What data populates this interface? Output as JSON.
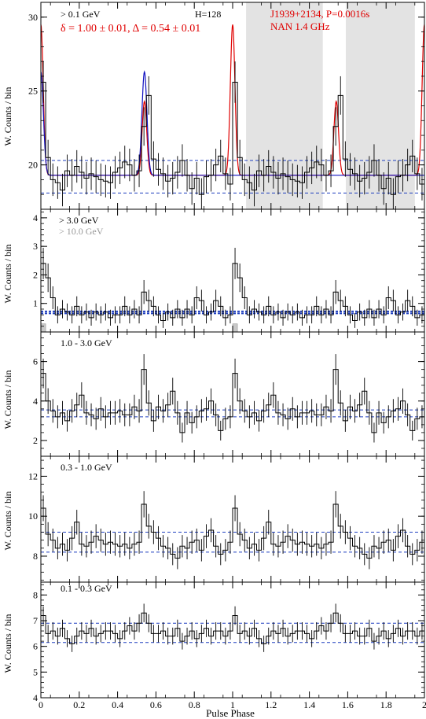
{
  "figure": {
    "xlabel": "Pulse Phase",
    "xlim": [
      0,
      2
    ],
    "x_ticks": [
      0,
      0.2,
      0.4,
      0.6,
      0.8,
      1,
      1.2,
      1.4,
      1.6,
      1.8,
      2
    ],
    "x_tick_labels": [
      "0",
      "0.2",
      "0.4",
      "0.6",
      "0.8",
      "1",
      "1.2",
      "1.4",
      "1.6",
      "1.8",
      "2"
    ],
    "colors": {
      "histogram": "#000000",
      "background_lines": "#1f3fbf",
      "fit_red": "#e00000",
      "fit_blue": "#1010c0",
      "shading": "#e3e3e3",
      "label_red": "#e00000",
      "label_grey": "#999999"
    }
  },
  "chart_data": [
    {
      "type": "line",
      "panel": "> 0.1 GeV",
      "ylabel": "W. Counts / bin",
      "ylim": [
        17,
        31
      ],
      "y_ticks": [
        20,
        25,
        30
      ],
      "labels": {
        "energy": "> 0.1 GeV",
        "h_test": "H=128",
        "pulsar": "J1939+2134, P=0.0016s",
        "radio": "NAN 1.4 GHz",
        "fit_params": "δ = 1.00 ± 0.01, Δ = 0.54 ± 0.01"
      },
      "shaded_regions": [
        [
          1.07,
          1.47
        ],
        [
          1.59,
          1.95
        ]
      ],
      "background_levels": [
        20.3,
        18.1
      ],
      "counts": [
        25.6,
        20.5,
        19.0,
        18.8,
        18.3,
        19.6,
        19.3,
        19.9,
        19.5,
        19.1,
        19.4,
        19.2,
        19.0,
        18.9,
        18.8,
        19.5,
        19.8,
        20.2,
        20.0,
        19.3,
        19.6,
        22.6,
        24.7,
        20.4,
        19.7,
        19.4,
        18.9,
        19.1,
        19.5,
        20.3,
        19.3,
        18.4,
        19.1,
        18.0,
        19.2,
        19.3,
        20.0,
        20.6,
        19.4,
        18.7,
        25.6,
        20.5,
        19.0,
        18.8,
        18.3,
        19.6,
        19.3,
        19.9,
        19.5,
        19.1,
        19.4,
        19.2,
        19.0,
        18.9,
        18.8,
        19.5,
        19.8,
        20.2,
        20.0,
        19.3,
        19.6,
        22.6,
        24.7,
        20.4,
        19.7,
        19.4,
        18.9,
        19.1,
        19.5,
        20.3,
        19.3,
        18.4,
        19.1,
        18.0,
        19.2,
        19.3,
        20.0,
        20.6,
        19.4,
        18.7
      ],
      "errors": [
        1.4,
        1.2,
        1.1,
        1.1,
        1.1,
        1.1,
        1.1,
        1.1,
        1.1,
        1.1,
        1.1,
        1.1,
        1.1,
        1.1,
        1.1,
        1.1,
        1.1,
        1.1,
        1.1,
        1.1,
        1.1,
        1.3,
        1.3,
        1.2,
        1.1,
        1.1,
        1.1,
        1.1,
        1.1,
        1.1,
        1.1,
        1.1,
        1.1,
        1.1,
        1.1,
        1.1,
        1.1,
        1.1,
        1.1,
        1.1,
        1.4,
        1.2,
        1.1,
        1.1,
        1.1,
        1.1,
        1.1,
        1.1,
        1.1,
        1.1,
        1.1,
        1.1,
        1.1,
        1.1,
        1.1,
        1.1,
        1.1,
        1.1,
        1.1,
        1.1,
        1.1,
        1.3,
        1.3,
        1.2,
        1.1,
        1.1,
        1.1,
        1.1,
        1.1,
        1.1,
        1.1,
        1.1,
        1.1,
        1.1,
        1.1,
        1.1,
        1.1,
        1.1,
        1.1,
        1.1
      ],
      "fit_red": {
        "baseline": 19.3,
        "peaks": [
          {
            "center": 0.0,
            "height": 10.2,
            "width": 0.012
          },
          {
            "center": 0.54,
            "height": 5.0,
            "width": 0.012
          },
          {
            "center": 1.0,
            "height": 10.2,
            "width": 0.012
          },
          {
            "center": 1.54,
            "height": 5.0,
            "width": 0.012
          },
          {
            "center": 2.0,
            "height": 10.2,
            "width": 0.012
          }
        ]
      },
      "fit_blue": {
        "baseline": 19.3,
        "peaks": [
          {
            "center": 0.0,
            "height": 7.0,
            "width": 0.013
          },
          {
            "center": 0.54,
            "height": 7.0,
            "width": 0.013
          }
        ]
      }
    },
    {
      "type": "line",
      "panel": "> 3.0 GeV",
      "ylabel": "W. Counts / bin",
      "ylim": [
        0,
        4.3
      ],
      "y_ticks": [
        1,
        2,
        3,
        4
      ],
      "labels": {
        "energy": "> 3.0 GeV",
        "energy_high": "> 10.0 GeV"
      },
      "background_levels": [
        0.72,
        0.65
      ],
      "counts": [
        2.4,
        1.9,
        1.2,
        0.6,
        0.8,
        0.7,
        0.6,
        0.9,
        0.6,
        0.7,
        0.5,
        0.7,
        0.6,
        0.7,
        0.5,
        0.6,
        0.6,
        0.9,
        0.6,
        0.8,
        0.6,
        1.4,
        1.1,
        0.9,
        0.6,
        0.4,
        0.7,
        0.5,
        0.8,
        0.5,
        0.8,
        0.6,
        1.2,
        1.1,
        0.6,
        0.7,
        1.1,
        0.9,
        0.5,
        0.6,
        2.4,
        1.9,
        1.2,
        0.6,
        0.8,
        0.7,
        0.6,
        0.9,
        0.6,
        0.7,
        0.5,
        0.7,
        0.6,
        0.7,
        0.5,
        0.6,
        0.6,
        0.9,
        0.6,
        0.8,
        0.6,
        1.4,
        1.1,
        0.9,
        0.6,
        0.4,
        0.7,
        0.5,
        0.8,
        0.5,
        0.8,
        0.6,
        1.2,
        1.1,
        0.6,
        0.7,
        1.1,
        0.9,
        0.5,
        0.6
      ],
      "errors": [
        0.55,
        0.5,
        0.4,
        0.3,
        0.32,
        0.3,
        0.3,
        0.35,
        0.3,
        0.3,
        0.28,
        0.3,
        0.3,
        0.3,
        0.28,
        0.3,
        0.3,
        0.35,
        0.3,
        0.32,
        0.3,
        0.42,
        0.38,
        0.35,
        0.3,
        0.26,
        0.3,
        0.28,
        0.32,
        0.28,
        0.32,
        0.3,
        0.4,
        0.38,
        0.3,
        0.3,
        0.38,
        0.35,
        0.28,
        0.3,
        0.55,
        0.5,
        0.4,
        0.3,
        0.32,
        0.3,
        0.3,
        0.35,
        0.3,
        0.3,
        0.28,
        0.3,
        0.3,
        0.3,
        0.28,
        0.3,
        0.3,
        0.35,
        0.3,
        0.32,
        0.3,
        0.42,
        0.38,
        0.35,
        0.3,
        0.26,
        0.3,
        0.28,
        0.32,
        0.28,
        0.32,
        0.3,
        0.4,
        0.38,
        0.3,
        0.3,
        0.38,
        0.35,
        0.28,
        0.3
      ],
      "high_energy_bins": [
        {
          "x": 0.0,
          "value": 0.12
        },
        {
          "x": 1.0,
          "value": 0.12
        }
      ]
    },
    {
      "type": "line",
      "panel": "1.0 - 3.0 GeV",
      "ylabel": "W. Counts / bin",
      "ylim": [
        1.2,
        7.5
      ],
      "y_ticks": [
        2,
        4,
        6
      ],
      "labels": {
        "energy": "1.0 - 3.0 GeV"
      },
      "background_levels": [
        3.55,
        3.2
      ],
      "counts": [
        5.4,
        4.0,
        3.5,
        3.2,
        3.4,
        3.0,
        3.5,
        3.8,
        4.3,
        3.4,
        3.3,
        3.1,
        3.6,
        3.2,
        3.4,
        3.4,
        3.5,
        3.3,
        3.3,
        3.7,
        3.5,
        5.6,
        3.9,
        3.0,
        3.7,
        3.5,
        3.8,
        4.5,
        3.4,
        2.4,
        3.4,
        2.9,
        3.2,
        3.5,
        3.6,
        4.0,
        3.3,
        2.5,
        3.1,
        3.2,
        5.4,
        4.0,
        3.5,
        3.2,
        3.4,
        3.0,
        3.5,
        3.8,
        4.3,
        3.4,
        3.3,
        3.1,
        3.6,
        3.2,
        3.4,
        3.4,
        3.5,
        3.3,
        3.3,
        3.7,
        3.5,
        5.6,
        3.9,
        3.0,
        3.7,
        3.5,
        3.8,
        4.5,
        3.4,
        2.4,
        3.4,
        2.9,
        3.2,
        3.5,
        3.6,
        4.0,
        3.3,
        2.5,
        3.1,
        3.2
      ],
      "errors": [
        0.75,
        0.65,
        0.6,
        0.58,
        0.6,
        0.55,
        0.6,
        0.62,
        0.65,
        0.6,
        0.58,
        0.56,
        0.6,
        0.58,
        0.6,
        0.6,
        0.6,
        0.58,
        0.58,
        0.62,
        0.6,
        0.78,
        0.64,
        0.56,
        0.62,
        0.6,
        0.62,
        0.68,
        0.6,
        0.5,
        0.6,
        0.55,
        0.58,
        0.6,
        0.6,
        0.64,
        0.58,
        0.5,
        0.56,
        0.58,
        0.75,
        0.65,
        0.6,
        0.58,
        0.6,
        0.55,
        0.6,
        0.62,
        0.65,
        0.6,
        0.58,
        0.56,
        0.6,
        0.58,
        0.6,
        0.6,
        0.6,
        0.58,
        0.58,
        0.62,
        0.6,
        0.78,
        0.64,
        0.56,
        0.62,
        0.6,
        0.62,
        0.68,
        0.6,
        0.5,
        0.6,
        0.55,
        0.58,
        0.6,
        0.6,
        0.64,
        0.58,
        0.5,
        0.56,
        0.58
      ]
    },
    {
      "type": "line",
      "panel": "0.3 - 1.0 GeV",
      "ylabel": "W. Counts / bin",
      "ylim": [
        6.7,
        13.0
      ],
      "y_ticks": [
        8,
        10,
        12
      ],
      "labels": {
        "energy": "0.3 - 1.0 GeV"
      },
      "background_levels": [
        9.2,
        8.2
      ],
      "counts": [
        10.4,
        9.1,
        8.8,
        8.4,
        8.6,
        8.3,
        8.9,
        9.7,
        8.6,
        8.5,
        8.7,
        9.0,
        8.8,
        8.6,
        8.7,
        8.6,
        8.5,
        8.6,
        8.4,
        8.6,
        8.7,
        10.6,
        9.5,
        9.2,
        8.9,
        8.5,
        8.4,
        8.1,
        7.9,
        8.5,
        8.4,
        8.7,
        8.8,
        8.3,
        9.0,
        9.3,
        8.5,
        8.1,
        8.3,
        8.7,
        10.4,
        9.1,
        8.8,
        8.4,
        8.6,
        8.3,
        8.9,
        9.7,
        8.6,
        8.5,
        8.7,
        9.0,
        8.8,
        8.6,
        8.7,
        8.6,
        8.5,
        8.6,
        8.4,
        8.6,
        8.7,
        10.6,
        9.5,
        9.2,
        8.9,
        8.5,
        8.4,
        8.1,
        7.9,
        8.5,
        8.4,
        8.7,
        8.8,
        8.3,
        9.0,
        9.3,
        8.5,
        8.1,
        8.3,
        8.7
      ],
      "errors": [
        0.65,
        0.6,
        0.58,
        0.56,
        0.58,
        0.56,
        0.6,
        0.62,
        0.58,
        0.56,
        0.58,
        0.6,
        0.58,
        0.58,
        0.58,
        0.58,
        0.56,
        0.58,
        0.56,
        0.58,
        0.58,
        0.66,
        0.62,
        0.6,
        0.6,
        0.56,
        0.56,
        0.55,
        0.55,
        0.56,
        0.56,
        0.58,
        0.58,
        0.56,
        0.6,
        0.6,
        0.56,
        0.55,
        0.56,
        0.58,
        0.65,
        0.6,
        0.58,
        0.56,
        0.58,
        0.56,
        0.6,
        0.62,
        0.58,
        0.56,
        0.58,
        0.6,
        0.58,
        0.58,
        0.58,
        0.58,
        0.56,
        0.58,
        0.56,
        0.58,
        0.58,
        0.66,
        0.62,
        0.6,
        0.6,
        0.56,
        0.56,
        0.55,
        0.55,
        0.56,
        0.56,
        0.58,
        0.58,
        0.56,
        0.6,
        0.6,
        0.56,
        0.55,
        0.56,
        0.58
      ]
    },
    {
      "type": "line",
      "panel": "0.1 - 0.3 GeV",
      "ylabel": "W. Counts / bin",
      "ylim": [
        4,
        8.5
      ],
      "y_ticks": [
        4,
        5,
        6,
        7,
        8
      ],
      "labels": {
        "energy": "0.1 - 0.3 GeV"
      },
      "background_levels": [
        6.9,
        6.15
      ],
      "counts": [
        7.2,
        6.5,
        6.6,
        6.4,
        6.7,
        6.3,
        6.1,
        6.4,
        6.6,
        6.5,
        6.7,
        6.4,
        6.5,
        6.6,
        6.6,
        6.5,
        6.3,
        6.6,
        6.8,
        6.6,
        6.9,
        7.3,
        6.9,
        6.5,
        6.5,
        6.6,
        6.4,
        6.4,
        6.7,
        6.2,
        6.4,
        6.6,
        6.3,
        6.5,
        6.7,
        6.4,
        6.6,
        6.6,
        6.4,
        6.6,
        7.2,
        6.5,
        6.6,
        6.4,
        6.7,
        6.3,
        6.1,
        6.4,
        6.6,
        6.5,
        6.7,
        6.4,
        6.5,
        6.6,
        6.6,
        6.5,
        6.3,
        6.6,
        6.8,
        6.6,
        6.9,
        7.3,
        6.9,
        6.5,
        6.5,
        6.6,
        6.4,
        6.4,
        6.7,
        6.2,
        6.4,
        6.6,
        6.3,
        6.5,
        6.7,
        6.4,
        6.6,
        6.6,
        6.4,
        6.6
      ],
      "errors": [
        0.36,
        0.34,
        0.34,
        0.33,
        0.34,
        0.33,
        0.32,
        0.33,
        0.34,
        0.34,
        0.34,
        0.33,
        0.34,
        0.34,
        0.34,
        0.34,
        0.33,
        0.34,
        0.34,
        0.34,
        0.35,
        0.36,
        0.35,
        0.34,
        0.34,
        0.34,
        0.33,
        0.33,
        0.34,
        0.32,
        0.33,
        0.34,
        0.33,
        0.34,
        0.34,
        0.33,
        0.34,
        0.34,
        0.33,
        0.34,
        0.36,
        0.34,
        0.34,
        0.33,
        0.34,
        0.33,
        0.32,
        0.33,
        0.34,
        0.34,
        0.34,
        0.33,
        0.34,
        0.34,
        0.34,
        0.34,
        0.33,
        0.34,
        0.34,
        0.34,
        0.35,
        0.36,
        0.35,
        0.34,
        0.34,
        0.34,
        0.33,
        0.33,
        0.34,
        0.32,
        0.33,
        0.34,
        0.33,
        0.34,
        0.34,
        0.33,
        0.34,
        0.34,
        0.33,
        0.34
      ]
    }
  ]
}
